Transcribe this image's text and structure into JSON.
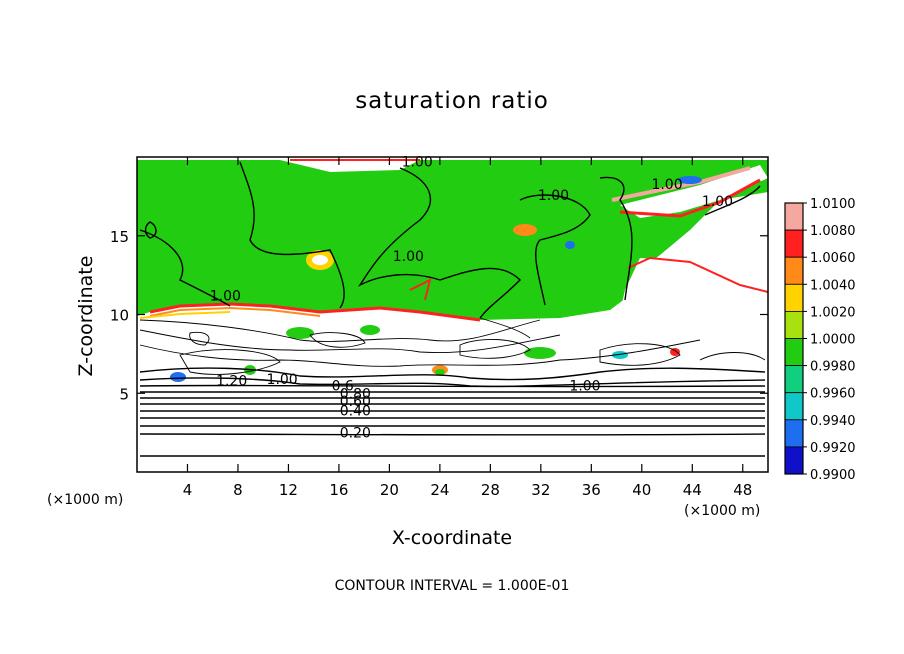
{
  "chart_data": {
    "type": "heatmap",
    "title": "saturation ratio",
    "xlabel": "X-coordinate",
    "ylabel": "Z-coordinate",
    "x_unit": "(×1000 m)",
    "y_unit": "(×1000 m)",
    "x_ticks": [
      4,
      8,
      12,
      16,
      20,
      24,
      28,
      32,
      36,
      40,
      44,
      48
    ],
    "y_ticks": [
      5,
      10,
      15
    ],
    "xlim": [
      0,
      50
    ],
    "ylim": [
      0,
      20
    ],
    "contour_interval_text": "CONTOUR INTERVAL = 1.000E-01",
    "colorbar": {
      "levels": [
        "1.0100",
        "1.0080",
        "1.0060",
        "1.0040",
        "1.0020",
        "1.0000",
        "0.9980",
        "0.9960",
        "0.9940",
        "0.9920",
        "0.9900"
      ],
      "colors": [
        "#f4a8a0",
        "#ff2020",
        "#ff8a1a",
        "#ffd200",
        "#a8e010",
        "#22cc10",
        "#10d080",
        "#10c8c8",
        "#1e6ef0",
        "#1010c8",
        "#5a0a8a"
      ]
    },
    "contour_labels": [
      {
        "text": "1.00",
        "x": 22.2,
        "y": 19.7
      },
      {
        "text": "1.00",
        "x": 33.0,
        "y": 17.6
      },
      {
        "text": "1.00",
        "x": 42.0,
        "y": 18.3
      },
      {
        "text": "1.00",
        "x": 46.0,
        "y": 17.2
      },
      {
        "text": "1.00",
        "x": 21.5,
        "y": 13.7
      },
      {
        "text": "1.00",
        "x": 7.0,
        "y": 11.2
      },
      {
        "text": "1.20",
        "x": 7.5,
        "y": 5.8
      },
      {
        "text": "1.00",
        "x": 11.5,
        "y": 5.9
      },
      {
        "text": "1.00",
        "x": 35.5,
        "y": 5.5
      },
      {
        "text": "0.6",
        "x": 16.3,
        "y": 5.5
      },
      {
        "text": "0.80",
        "x": 17.3,
        "y": 5.0
      },
      {
        "text": "0.60",
        "x": 17.3,
        "y": 4.5
      },
      {
        "text": "0.40",
        "x": 17.3,
        "y": 3.9
      },
      {
        "text": "0.20",
        "x": 17.3,
        "y": 2.5
      }
    ]
  }
}
